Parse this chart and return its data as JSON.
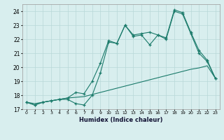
{
  "x_values": [
    0,
    1,
    2,
    3,
    4,
    5,
    6,
    7,
    8,
    9,
    10,
    11,
    12,
    13,
    14,
    15,
    16,
    17,
    18,
    19,
    20,
    21,
    22,
    23
  ],
  "line_zigzag": [
    17.5,
    17.3,
    17.5,
    17.6,
    17.7,
    17.7,
    17.4,
    17.3,
    18.0,
    19.6,
    21.8,
    21.7,
    23.0,
    22.2,
    22.3,
    21.6,
    22.3,
    22.0,
    24.0,
    23.8,
    22.4,
    21.0,
    20.4,
    19.2
  ],
  "line_diagonal": [
    17.5,
    17.4,
    17.5,
    17.6,
    17.7,
    17.8,
    17.85,
    17.9,
    18.05,
    18.2,
    18.35,
    18.5,
    18.65,
    18.8,
    18.95,
    19.1,
    19.25,
    19.4,
    19.55,
    19.7,
    19.85,
    19.95,
    20.1,
    19.2
  ],
  "line_upper": [
    17.5,
    17.3,
    17.5,
    17.6,
    17.7,
    17.8,
    18.2,
    18.1,
    19.0,
    20.3,
    21.9,
    21.7,
    23.0,
    22.3,
    22.4,
    22.5,
    22.3,
    22.1,
    24.1,
    23.9,
    22.5,
    21.2,
    20.5,
    19.2
  ],
  "line_color": "#1a7a6a",
  "bg_color": "#d8eeee",
  "grid_color": "#b8d8d8",
  "xlabel": "Humidex (Indice chaleur)",
  "xlim": [
    -0.5,
    23.5
  ],
  "ylim": [
    17.0,
    24.5
  ],
  "yticks": [
    17,
    18,
    19,
    20,
    21,
    22,
    23,
    24
  ],
  "xtick_labels": [
    "0",
    "1",
    "2",
    "3",
    "4",
    "5",
    "6",
    "7",
    "8",
    "9",
    "10",
    "11",
    "12",
    "13",
    "14",
    "15",
    "16",
    "17",
    "18",
    "19",
    "20",
    "21",
    "22",
    "23"
  ]
}
